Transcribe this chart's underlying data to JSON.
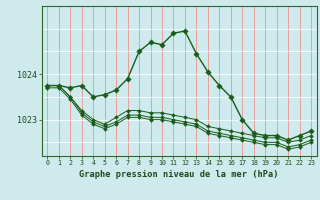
{
  "title": "Graphe pression niveau de la mer (hPa)",
  "bg_color": "#ceeaec",
  "grid_color_v": "#f08080",
  "grid_color_h": "#ffffff",
  "line_color": "#1a5c1a",
  "marker_color": "#1a5c1a",
  "xlim": [
    -0.5,
    23.5
  ],
  "ylim": [
    1022.2,
    1025.5
  ],
  "yticks": [
    1023,
    1024
  ],
  "xticks": [
    0,
    1,
    2,
    3,
    4,
    5,
    6,
    7,
    8,
    9,
    10,
    11,
    12,
    13,
    14,
    15,
    16,
    17,
    18,
    19,
    20,
    21,
    22,
    23
  ],
  "series": [
    [
      1023.75,
      1023.75,
      1023.7,
      1023.75,
      1023.5,
      1023.55,
      1023.65,
      1023.9,
      1024.5,
      1024.7,
      1024.65,
      1024.9,
      1024.95,
      1024.45,
      1024.05,
      1023.75,
      1023.5,
      1023.0,
      1022.7,
      1022.65,
      1022.65,
      1022.55,
      1022.65,
      1022.75
    ],
    [
      1023.75,
      1023.75,
      1023.5,
      1023.2,
      1023.0,
      1022.9,
      1023.05,
      1023.2,
      1023.2,
      1023.15,
      1023.15,
      1023.1,
      1023.05,
      1023.0,
      1022.85,
      1022.8,
      1022.75,
      1022.7,
      1022.65,
      1022.6,
      1022.6,
      1022.5,
      1022.55,
      1022.65
    ],
    [
      1023.75,
      1023.75,
      1023.5,
      1023.15,
      1022.95,
      1022.85,
      1022.95,
      1023.1,
      1023.1,
      1023.05,
      1023.05,
      1023.0,
      1022.95,
      1022.9,
      1022.75,
      1022.7,
      1022.65,
      1022.6,
      1022.55,
      1022.5,
      1022.5,
      1022.4,
      1022.45,
      1022.55
    ],
    [
      1023.7,
      1023.7,
      1023.45,
      1023.1,
      1022.9,
      1022.8,
      1022.9,
      1023.05,
      1023.05,
      1023.0,
      1023.0,
      1022.95,
      1022.9,
      1022.85,
      1022.7,
      1022.65,
      1022.6,
      1022.55,
      1022.5,
      1022.45,
      1022.45,
      1022.35,
      1022.4,
      1022.5
    ]
  ]
}
